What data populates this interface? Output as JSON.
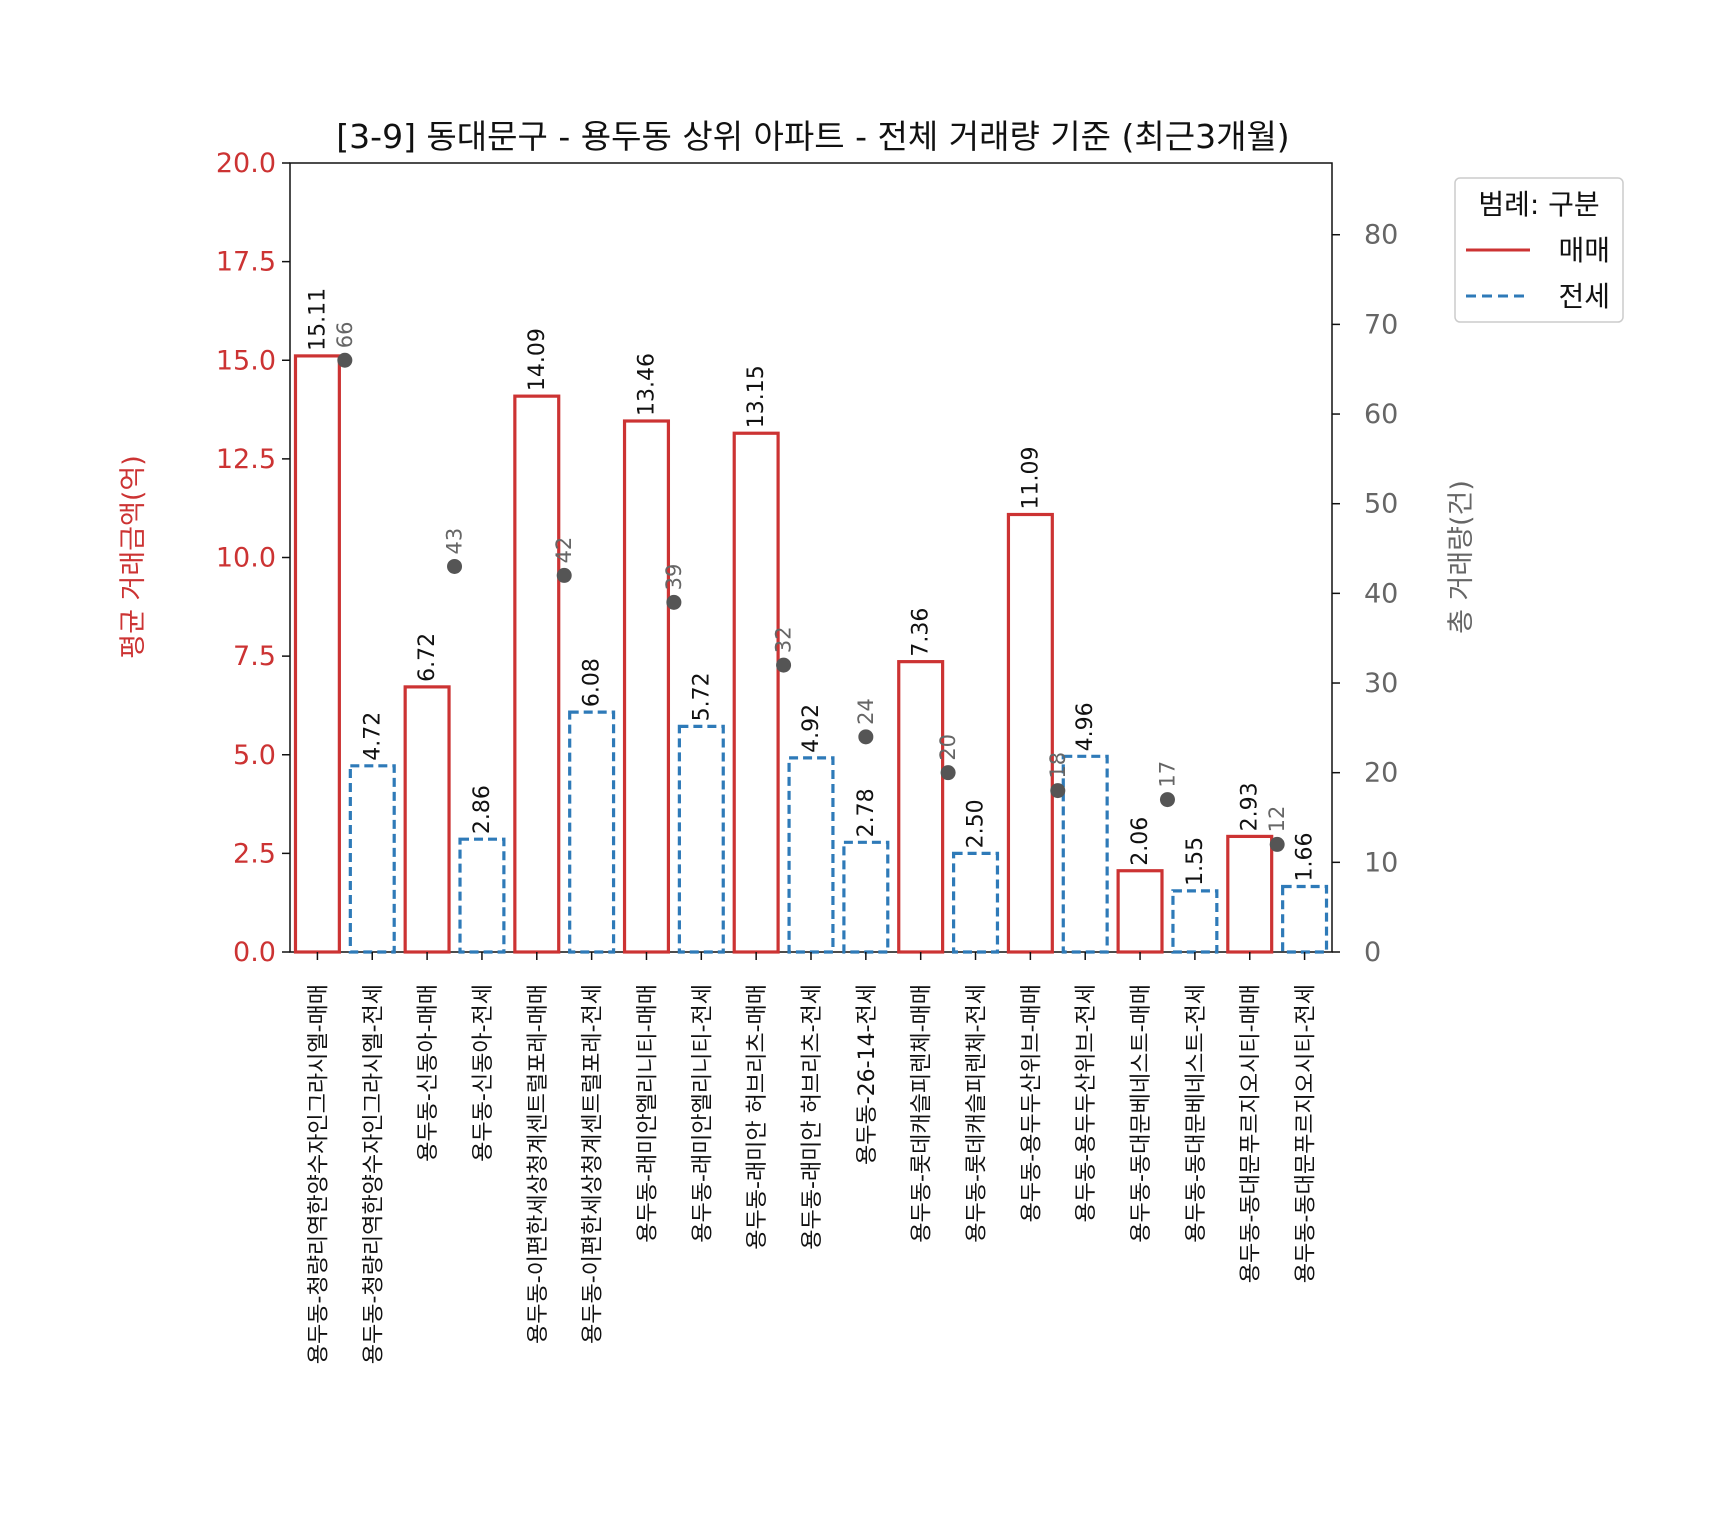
{
  "chart_data": {
    "type": "bar",
    "title": "[3-9] 동대문구 - 용두동 상위 아파트 - 전체 거래량 기준 (최근3개월)",
    "ylabel": "평균 거래금액(억)",
    "y2label": "총 거래량(건)",
    "ylim": [
      0,
      20
    ],
    "y2lim": [
      0,
      88
    ],
    "yticks": [
      "0.0",
      "2.5",
      "5.0",
      "7.5",
      "10.0",
      "12.5",
      "15.0",
      "17.5",
      "20.0"
    ],
    "y2ticks": [
      "0",
      "10",
      "20",
      "30",
      "40",
      "50",
      "60",
      "70",
      "80"
    ],
    "grid": false,
    "legend": {
      "title": "범례: 구분",
      "placement": "outside-top-right",
      "entries": [
        {
          "label": "매매",
          "color": "#cc3333",
          "dash": "solid"
        },
        {
          "label": "전세",
          "color": "#2e7ab8",
          "dash": "dashed"
        }
      ]
    },
    "categories": [
      "용두동-청량리역한양수자인그라시엘-매매",
      "용두동-청량리역한양수자인그라시엘-전세",
      "용두동-신동아-매매",
      "용두동-신동아-전세",
      "용두동-이편한세상청계센트럴포레-매매",
      "용두동-이편한세상청계센트럴포레-전세",
      "용두동-래미안엘리니티-매매",
      "용두동-래미안엘리니티-전세",
      "용두동-래미안 허브리츠-매매",
      "용두동-래미안 허브리츠-전세",
      "용두동-26-14-전세",
      "용두동-롯데캐슬피렌체-매매",
      "용두동-롯데캐슬피렌체-전세",
      "용두동-용두두산위브-매매",
      "용두동-용두두산위브-전세",
      "용두동-동대문베네스트-매매",
      "용두동-동대문베네스트-전세",
      "용두동-동대문푸르지오시티-매매",
      "용두동-동대문푸르지오시티-전세"
    ],
    "kinds": [
      "매매",
      "전세",
      "매매",
      "전세",
      "매매",
      "전세",
      "매매",
      "전세",
      "매매",
      "전세",
      "전세",
      "매매",
      "전세",
      "매매",
      "전세",
      "매매",
      "전세",
      "매매",
      "전세"
    ],
    "values": [
      15.11,
      4.72,
      6.72,
      2.86,
      14.09,
      6.08,
      13.46,
      5.72,
      13.15,
      4.92,
      2.78,
      7.36,
      2.5,
      11.09,
      4.96,
      2.06,
      1.55,
      2.93,
      1.66
    ],
    "value_labels": [
      "15.11",
      "4.72",
      "6.72",
      "2.86",
      "14.09",
      "6.08",
      "13.46",
      "5.72",
      "13.15",
      "4.92",
      "2.78",
      "7.36",
      "2.50",
      "11.09",
      "4.96",
      "2.06",
      "1.55",
      "2.93",
      "1.66"
    ],
    "counts": [
      {
        "slot": 0.5,
        "value": 66
      },
      {
        "slot": 2.5,
        "value": 43
      },
      {
        "slot": 4.5,
        "value": 42
      },
      {
        "slot": 6.5,
        "value": 39
      },
      {
        "slot": 8.5,
        "value": 32
      },
      {
        "slot": 10,
        "value": 24
      },
      {
        "slot": 11.5,
        "value": 20
      },
      {
        "slot": 13.5,
        "value": 18
      },
      {
        "slot": 15.5,
        "value": 17
      },
      {
        "slot": 17.5,
        "value": 12
      }
    ],
    "count_color": "#555555"
  }
}
